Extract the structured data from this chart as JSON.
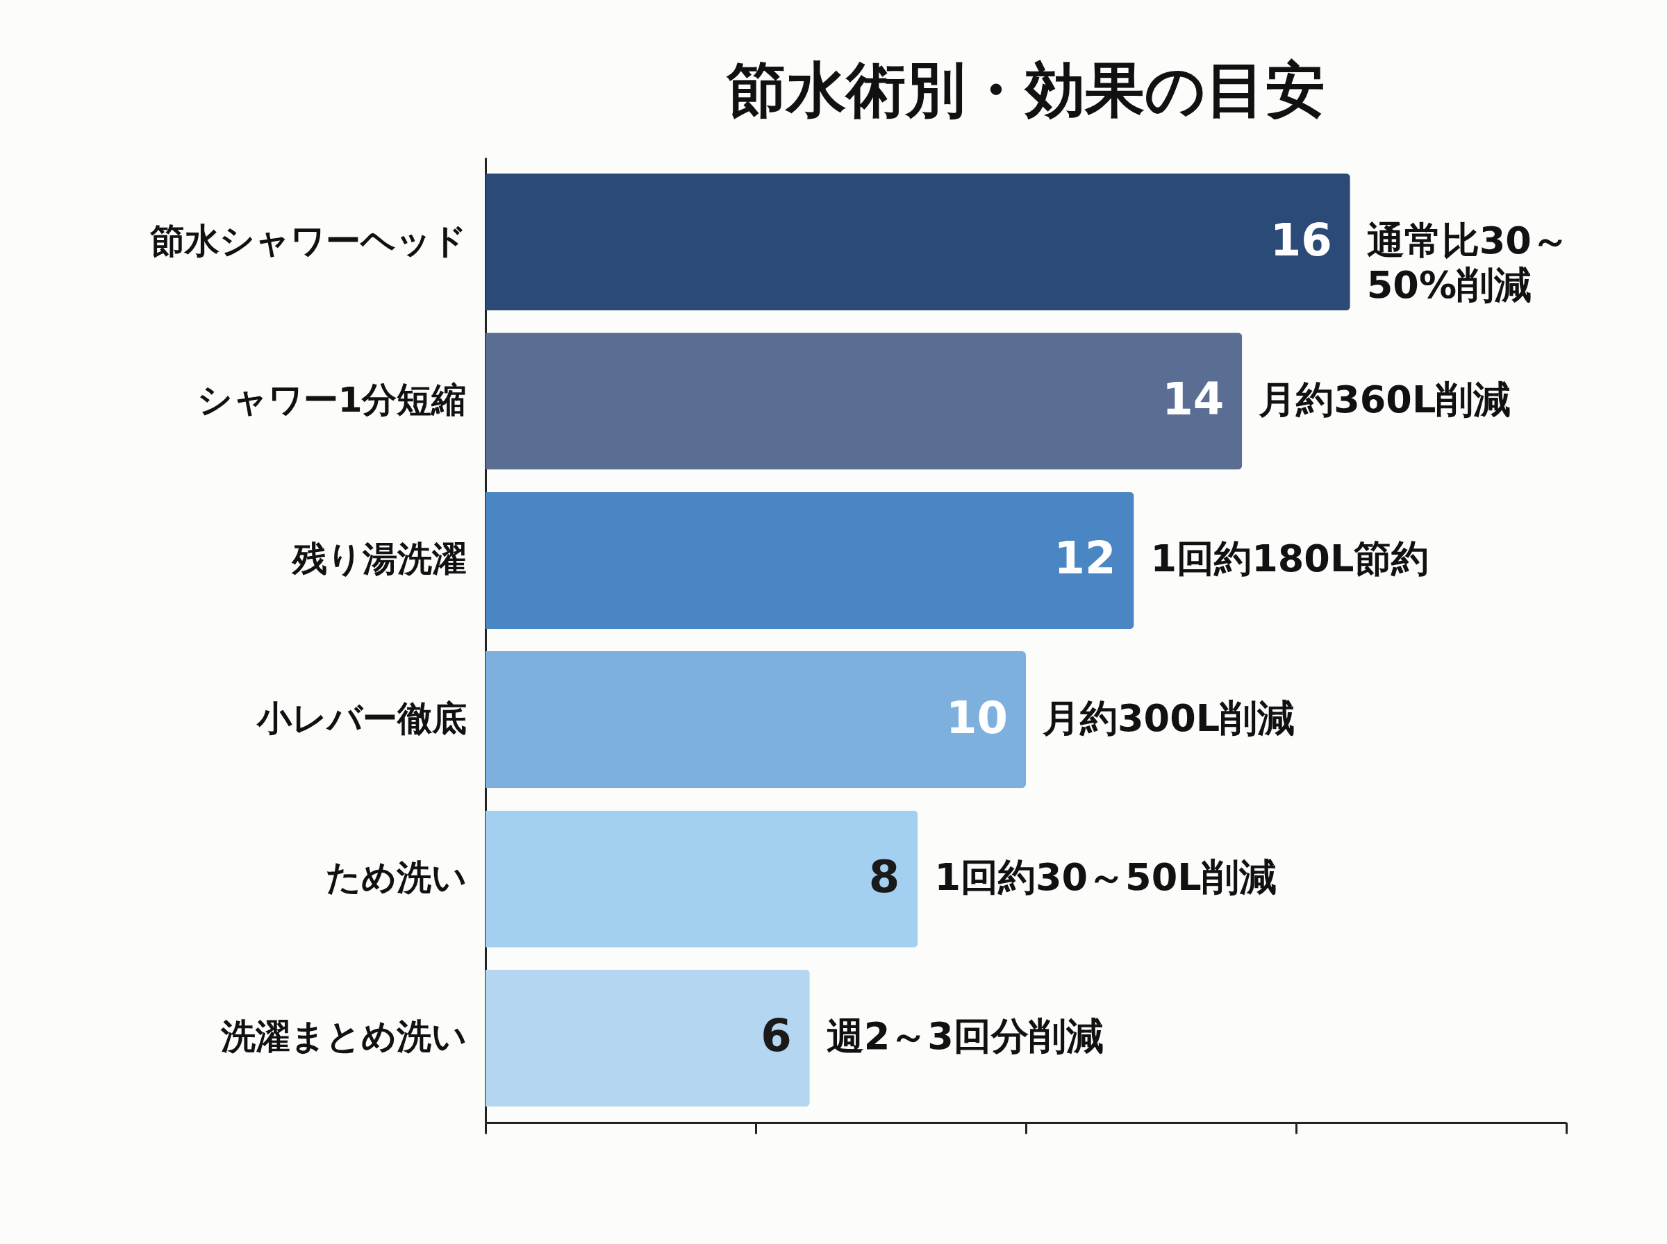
{
  "chart_data": {
    "type": "bar",
    "orientation": "horizontal",
    "title": "節水術別・効果の目安",
    "categories": [
      "節水シャワーヘッド",
      "シャワー1分短縮",
      "残り湯洗濯",
      "小レバー徹底",
      "ため洗い",
      "洗濯まとめ洗い"
    ],
    "values": [
      16,
      14,
      12,
      10,
      8,
      6
    ],
    "colors": [
      "#2b4a78",
      "#5a6d93",
      "#4a86c4",
      "#7eb0de",
      "#a3d0f0",
      "#b5d6f0"
    ],
    "xlim": [
      0,
      20
    ],
    "xticks": [
      {
        "value": 0,
        "label": null
      },
      {
        "value": 5,
        "label": null
      },
      {
        "value": 10,
        "label": null
      },
      {
        "value": 15,
        "label": null
      },
      {
        "value": 20,
        "label": null
      }
    ],
    "tick_labels": "y",
    "grid": false,
    "data_labels": true,
    "annotations": [
      {
        "text": "通常比30～50%削減",
        "x": 16,
        "y": "節水シャワーヘッド"
      },
      {
        "text": "月約360L削減",
        "x": 14,
        "y": "シャワー1分短縮"
      },
      {
        "text": "1回約180L節約",
        "x": 12,
        "y": "残り湯洗濯"
      },
      {
        "text": "月約300L削減",
        "x": 10,
        "y": "小レバー徹底"
      },
      {
        "text": "1回約30～50L削減",
        "x": 8,
        "y": "ため洗い"
      },
      {
        "text": "週2～3回分削減",
        "x": 6,
        "y": "洗濯まとめ洗い"
      }
    ]
  }
}
